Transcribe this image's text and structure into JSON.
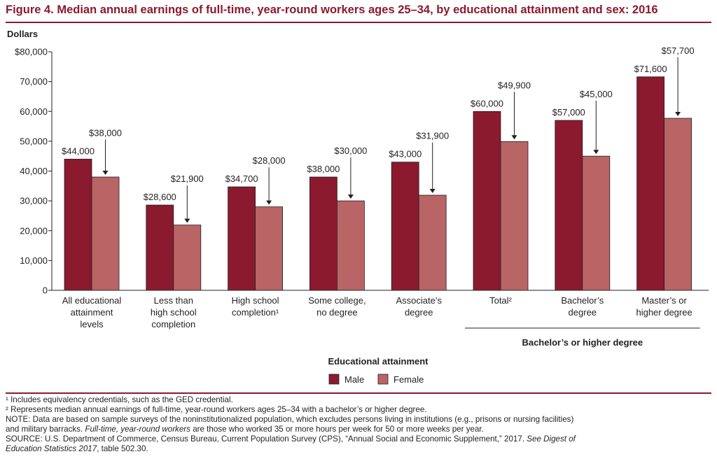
{
  "figure": {
    "title": "Figure 4.   Median annual earnings of full-time, year-round workers ages 25–34, by educational attainment and sex: 2016"
  },
  "chart_data": {
    "type": "bar",
    "ylabel": "Dollars",
    "xlabel": "Educational attainment",
    "ylim": [
      0,
      80000
    ],
    "yticks": [
      0,
      10000,
      20000,
      30000,
      40000,
      50000,
      60000,
      70000,
      80000
    ],
    "ytick_labels": [
      "0",
      "10,000",
      "20,000",
      "30,000",
      "40,000",
      "50,000",
      "60,000",
      "70,000",
      "$80,000"
    ],
    "categories": [
      [
        "All educational",
        "attainment",
        "levels"
      ],
      [
        "Less than",
        "high school",
        "completion"
      ],
      [
        "High school",
        "completion¹"
      ],
      [
        "Some college,",
        "no degree"
      ],
      [
        "Associate’s",
        "degree"
      ],
      [
        "Total²"
      ],
      [
        "Bachelor’s",
        "degree"
      ],
      [
        "Master’s or",
        "higher degree"
      ]
    ],
    "group_label": "Bachelor’s or higher degree",
    "series": [
      {
        "name": "Male",
        "color": "#8b1a2f",
        "values": [
          44000,
          28600,
          34700,
          38000,
          43000,
          60000,
          57000,
          71600
        ],
        "labels": [
          "$44,000",
          "$28,600",
          "$34,700",
          "$38,000",
          "$43,000",
          "$60,000",
          "$57,000",
          "$71,600"
        ]
      },
      {
        "name": "Female",
        "color": "#b96465",
        "values": [
          38000,
          21900,
          28000,
          30000,
          31900,
          49900,
          45000,
          57700
        ],
        "labels": [
          "$38,000",
          "$21,900",
          "$28,000",
          "$30,000",
          "$31,900",
          "$49,900",
          "$45,000",
          "$57,700"
        ]
      }
    ],
    "legend": [
      "Male",
      "Female"
    ],
    "legend_position": "bottom-center",
    "grid": false
  },
  "notes": {
    "footnote1": "¹ Includes equivalency credentials, such as the GED credential.",
    "footnote2": "² Represents median annual earnings of full-time, year-round workers ages 25–34 with a bachelor’s or higher degree.",
    "note_line1": "NOTE: Data are based on sample surveys of the noninstitutionalized population, which excludes persons living in institutions (e.g., prisons or nursing facilities)",
    "note_line2_a": "and military barracks. ",
    "note_line2_italic": "Full-time, year-round workers",
    "note_line2_b": " are those who worked 35 or more hours per week for 50 or more weeks per year.",
    "source_line1_a": "SOURCE: U.S. Department of Commerce, Census Bureau, Current Population Survey (CPS), “Annual Social and Economic Supplement,” 2017. ",
    "source_line1_italic": "See Digest of",
    "source_line2_italic": "Education Statistics 2017",
    "source_line2_b": ", table 502.30."
  }
}
